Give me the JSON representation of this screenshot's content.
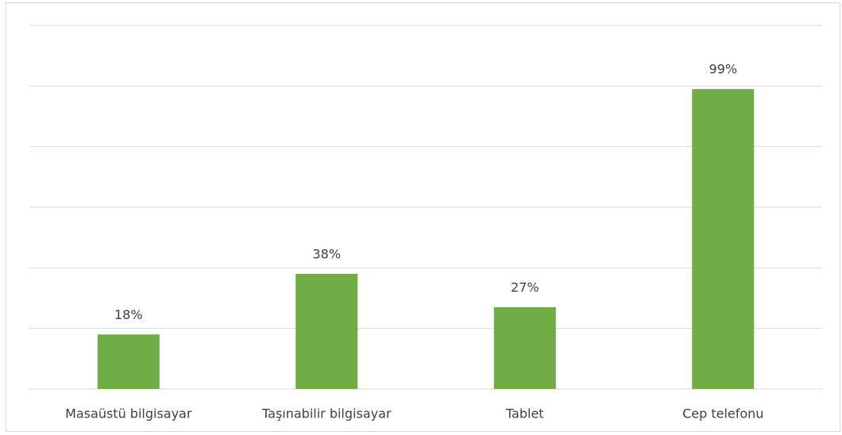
{
  "chart_data": {
    "type": "bar",
    "categories": [
      "Masaüstü bilgisayar",
      "Taşınabilir bilgisayar",
      "Tablet",
      "Cep telefonu"
    ],
    "values": [
      18,
      38,
      27,
      99
    ],
    "value_labels": [
      "18%",
      "38%",
      "27%",
      "99%"
    ],
    "color": "#70ad47",
    "ylim": [
      0,
      120
    ],
    "yticks": [
      0,
      20,
      40,
      60,
      80,
      100,
      120
    ],
    "grid": true
  }
}
